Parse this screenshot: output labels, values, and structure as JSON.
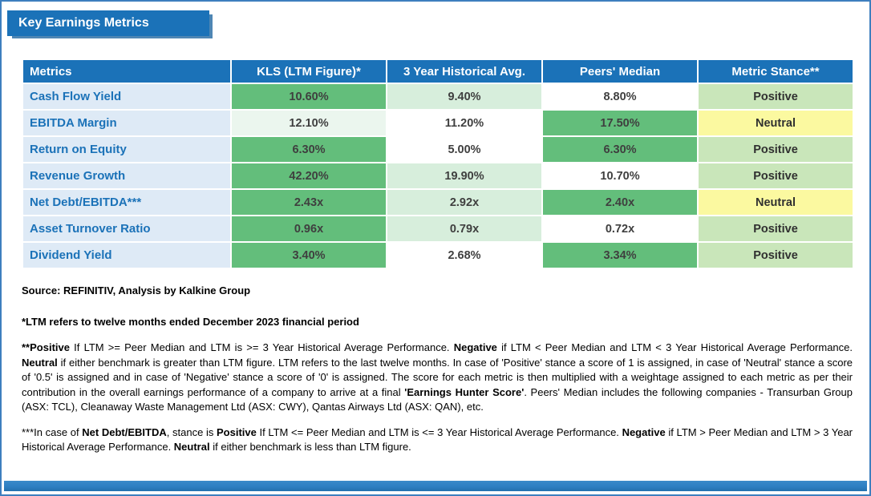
{
  "title": "Key Earnings Metrics",
  "palette": {
    "header_blue": "#1B72B8",
    "metric_column_blue": "#DEEAF6",
    "metric_text_blue": "#1B72B8",
    "green_strong": "#63BE7B",
    "green_light": "#D7EEDC",
    "green_faint": "#EBF6EE",
    "stance_positive_green": "#C9E6BA",
    "stance_neutral_yellow": "#FBF9A0",
    "value_text": "#3F3F3F",
    "page_border_blue": "#3E7FBE"
  },
  "table": {
    "headers": [
      "Metrics",
      "KLS (LTM Figure)*",
      "3 Year Historical Avg.",
      "Peers' Median",
      "Metric Stance**"
    ],
    "rows": [
      {
        "metric": "Cash Flow Yield",
        "kls": {
          "text": "10.60%",
          "tone": "strong"
        },
        "hist": {
          "text": "9.40%",
          "tone": "light"
        },
        "peers": {
          "text": "8.80%",
          "tone": "none"
        },
        "stance": {
          "text": "Positive",
          "tone": "positive"
        }
      },
      {
        "metric": "EBITDA Margin",
        "kls": {
          "text": "12.10%",
          "tone": "faint"
        },
        "hist": {
          "text": "11.20%",
          "tone": "none"
        },
        "peers": {
          "text": "17.50%",
          "tone": "strong"
        },
        "stance": {
          "text": "Neutral",
          "tone": "neutral"
        }
      },
      {
        "metric": "Return on Equity",
        "kls": {
          "text": "6.30%",
          "tone": "strong"
        },
        "hist": {
          "text": "5.00%",
          "tone": "none"
        },
        "peers": {
          "text": "6.30%",
          "tone": "strong"
        },
        "stance": {
          "text": "Positive",
          "tone": "positive"
        }
      },
      {
        "metric": "Revenue Growth",
        "kls": {
          "text": "42.20%",
          "tone": "strong"
        },
        "hist": {
          "text": "19.90%",
          "tone": "light"
        },
        "peers": {
          "text": "10.70%",
          "tone": "none"
        },
        "stance": {
          "text": "Positive",
          "tone": "positive"
        }
      },
      {
        "metric": "Net Debt/EBITDA***",
        "kls": {
          "text": "2.43x",
          "tone": "strong"
        },
        "hist": {
          "text": "2.92x",
          "tone": "light"
        },
        "peers": {
          "text": "2.40x",
          "tone": "strong"
        },
        "stance": {
          "text": "Neutral",
          "tone": "neutral"
        }
      },
      {
        "metric": "Asset Turnover Ratio",
        "kls": {
          "text": "0.96x",
          "tone": "strong"
        },
        "hist": {
          "text": "0.79x",
          "tone": "light"
        },
        "peers": {
          "text": "0.72x",
          "tone": "none"
        },
        "stance": {
          "text": "Positive",
          "tone": "positive"
        }
      },
      {
        "metric": "Dividend Yield",
        "kls": {
          "text": "3.40%",
          "tone": "strong"
        },
        "hist": {
          "text": "2.68%",
          "tone": "none"
        },
        "peers": {
          "text": "3.34%",
          "tone": "strong"
        },
        "stance": {
          "text": "Positive",
          "tone": "positive"
        }
      }
    ]
  },
  "notes": {
    "source": "Source: REFINITIV, Analysis by Kalkine Group",
    "ltm": "*LTM refers to twelve months ended December 2023 financial period",
    "stance_paragraph": [
      {
        "bold": true,
        "text": "**Positive"
      },
      {
        "bold": false,
        "text": " If LTM >= Peer Median and LTM is >= 3 Year Historical Average Performance. "
      },
      {
        "bold": true,
        "text": "Negative"
      },
      {
        "bold": false,
        "text": " if LTM < Peer Median and LTM < 3 Year Historical Average Performance. "
      },
      {
        "bold": true,
        "text": "Neutral"
      },
      {
        "bold": false,
        "text": " if either benchmark is greater than LTM figure. LTM refers to the last twelve months. In case of 'Positive' stance a score of 1 is assigned, in case of 'Neutral' stance a score of '0.5' is assigned and in case of 'Negative' stance a score of '0' is assigned. The score for each metric is then multiplied with a weightage assigned to each metric as per their contribution in the overall earnings performance of a company to arrive at a final "
      },
      {
        "bold": true,
        "text": "'Earnings Hunter Score'"
      },
      {
        "bold": false,
        "text": ". Peers' Median includes the following companies - Transurban Group (ASX: TCL), Cleanaway Waste Management Ltd (ASX: CWY), Qantas Airways Ltd (ASX: QAN), etc."
      }
    ],
    "netdebt_paragraph": [
      {
        "bold": false,
        "text": "***In case of "
      },
      {
        "bold": true,
        "text": "Net Debt/EBITDA"
      },
      {
        "bold": false,
        "text": ", stance is "
      },
      {
        "bold": true,
        "text": "Positive"
      },
      {
        "bold": false,
        "text": " If LTM <= Peer Median and LTM is <= 3 Year Historical Average Performance. "
      },
      {
        "bold": true,
        "text": "Negative"
      },
      {
        "bold": false,
        "text": " if LTM > Peer Median and LTM > 3 Year Historical Average Performance. "
      },
      {
        "bold": true,
        "text": "Neutral"
      },
      {
        "bold": false,
        "text": " if either benchmark is less than LTM figure."
      }
    ]
  }
}
